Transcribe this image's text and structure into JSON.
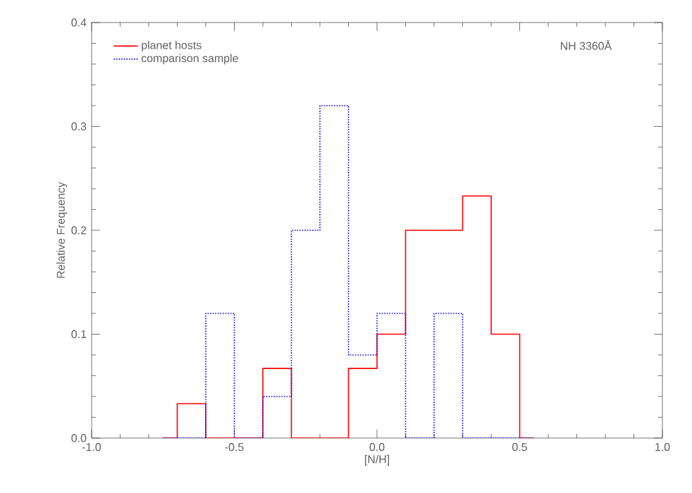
{
  "chart_data": {
    "type": "histogram",
    "xlabel": "[N/H]",
    "ylabel": "Relative Frequency",
    "annotations": [
      "NH 3360Å"
    ],
    "bins": [
      -0.75,
      -0.7,
      -0.6,
      -0.5,
      -0.4,
      -0.3,
      -0.2,
      -0.1,
      0.0,
      0.1,
      0.2,
      0.3,
      0.4,
      0.5,
      0.55
    ],
    "series": [
      {
        "name": "planet hosts",
        "color": "#ff0000",
        "line_style": "solid",
        "values": [
          0,
          0.033,
          0,
          0,
          0.067,
          0,
          0,
          0.067,
          0.1,
          0.2,
          0.2,
          0.233,
          0.1,
          0
        ]
      },
      {
        "name": "comparison sample",
        "color": "#0000ff",
        "line_style": "dotted",
        "values": [
          0,
          0,
          0.12,
          0,
          0.04,
          0.2,
          0.32,
          0.08,
          0.12,
          0,
          0.12,
          0,
          0,
          0
        ]
      }
    ],
    "xlim": [
      -1.0,
      1.0
    ],
    "ylim": [
      0.0,
      0.4
    ],
    "xticks": [
      {
        "value": -1.0,
        "label": "-1.0"
      },
      {
        "value": -0.5,
        "label": "-0.5"
      },
      {
        "value": 0.0,
        "label": "0.0"
      },
      {
        "value": 0.5,
        "label": "0.5"
      },
      {
        "value": 1.0,
        "label": "1.0"
      }
    ],
    "yticks": [
      {
        "value": 0.0,
        "label": "0.0"
      },
      {
        "value": 0.1,
        "label": "0.1"
      },
      {
        "value": 0.2,
        "label": "0.2"
      },
      {
        "value": 0.3,
        "label": "0.3"
      },
      {
        "value": 0.4,
        "label": "0.4"
      }
    ],
    "legend": "top left",
    "grid": false
  }
}
